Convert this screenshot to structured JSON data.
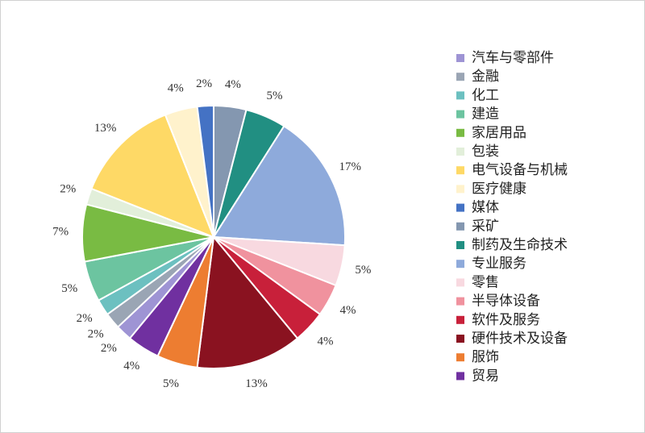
{
  "chart_data": {
    "type": "pie",
    "categories": [
      "汽车与零部件",
      "金融",
      "化工",
      "建造",
      "家居用品",
      "包装",
      "电气设备与机械",
      "医疗健康",
      "媒体",
      "采矿",
      "制药及生命技术",
      "专业服务",
      "零售",
      "半导体设备",
      "软件及服务",
      "硬件技术及设备",
      "服饰",
      "贸易"
    ],
    "values": [
      2,
      2,
      2,
      5,
      7,
      2,
      13,
      4,
      2,
      4,
      5,
      17,
      5,
      4,
      4,
      13,
      5,
      4
    ],
    "value_labels": [
      "2%",
      "2%",
      "2%",
      "5%",
      "7%",
      "2%",
      "13%",
      "4%",
      "2%",
      "4%",
      "5%",
      "17%",
      "5%",
      "4%",
      "4%",
      "13%",
      "5%",
      "4%"
    ],
    "colors": [
      "#9e94d4",
      "#9aa5b4",
      "#6cc0c0",
      "#6cc4a0",
      "#79bb43",
      "#e2efda",
      "#fed966",
      "#fff2cc",
      "#4472c4",
      "#8497b0",
      "#218f82",
      "#8eaadb",
      "#f8d9e0",
      "#f0929e",
      "#c8203a",
      "#8a1220",
      "#ed7d31",
      "#7030a0"
    ],
    "legend": "right"
  }
}
